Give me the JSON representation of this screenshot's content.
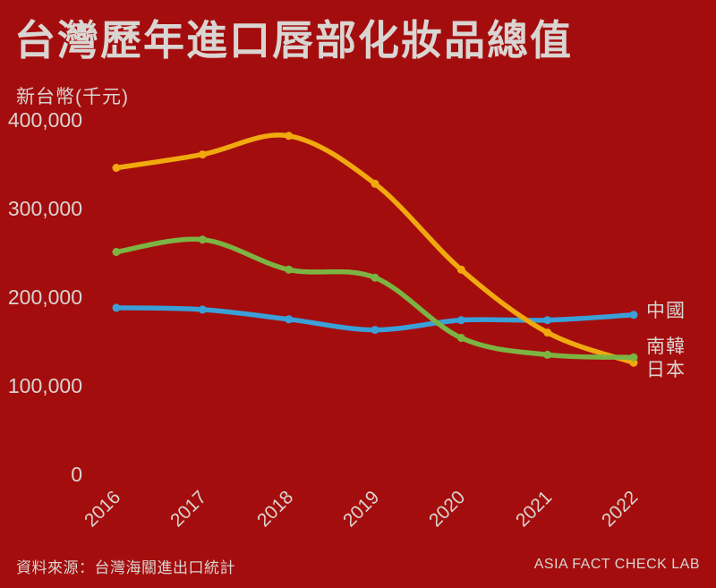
{
  "colors": {
    "background": "#A40D0D",
    "text": "#D9D5D2",
    "japan_line": "#F0A90E",
    "korea_line": "#7CB443",
    "china_line": "#3B9FD8"
  },
  "title": "台灣歷年進口唇部化妝品總值",
  "footer": {
    "source": "資料來源：台灣海關進出口統計",
    "credit": "ASIA FACT CHECK LAB"
  },
  "chart_data": {
    "type": "line",
    "title": "台灣歷年進口唇部化妝品總值",
    "ylabel": "新台幣(千元)",
    "xlabel": "",
    "x": [
      "2016",
      "2017",
      "2018",
      "2019",
      "2020",
      "2021",
      "2022"
    ],
    "ylim": [
      0,
      400000
    ],
    "grid": false,
    "legend_position": "right-end-labels",
    "y_ticks": [
      {
        "value": 400000,
        "label": "400,000"
      },
      {
        "value": 300000,
        "label": "300,000"
      },
      {
        "value": 200000,
        "label": "200,000"
      },
      {
        "value": 100000,
        "label": "100,000"
      },
      {
        "value": 0,
        "label": "0"
      }
    ],
    "series": [
      {
        "id": "china",
        "label": "中國",
        "color": "#3B9FD8",
        "values": [
          188000,
          186000,
          175000,
          163000,
          174000,
          174000,
          180000
        ]
      },
      {
        "id": "japan",
        "label": "日本",
        "color": "#F0A90E",
        "values": [
          346000,
          361000,
          382000,
          328000,
          231000,
          160000,
          126000
        ]
      },
      {
        "id": "korea",
        "label": "南韓",
        "color": "#7CB443",
        "values": [
          251000,
          265000,
          231000,
          222000,
          154000,
          135000,
          132000
        ]
      }
    ]
  }
}
